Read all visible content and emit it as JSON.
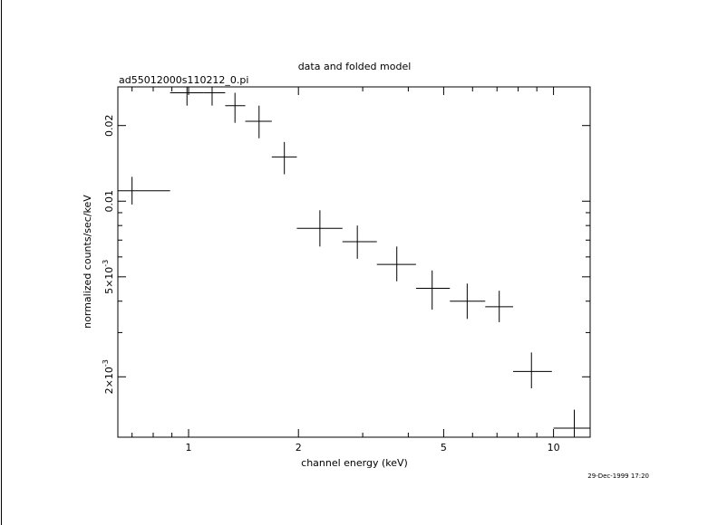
{
  "chart_data": {
    "type": "scatter",
    "title": "data and folded model",
    "subtitle": "ad55012000s110212_0.pi",
    "xlabel": "channel energy (keV)",
    "ylabel": "normalized counts/sec/keV",
    "timestamp": "29-Dec-1999 17:20",
    "x_scale": "log",
    "y_scale": "log",
    "xlim": [
      0.64,
      12.6
    ],
    "ylim": [
      0.00115,
      0.0285
    ],
    "grid": false,
    "x_ticks": [
      {
        "value": 1,
        "label": "1"
      },
      {
        "value": 2,
        "label": "2"
      },
      {
        "value": 5,
        "label": "5"
      },
      {
        "value": 10,
        "label": "10"
      }
    ],
    "y_ticks": [
      {
        "value": 0.002,
        "label": "2×10",
        "exp": "-3"
      },
      {
        "value": 0.005,
        "label": "5×10",
        "exp": "-3"
      },
      {
        "value": 0.01,
        "label": "0.01",
        "exp": ""
      },
      {
        "value": 0.02,
        "label": "0.02",
        "exp": ""
      }
    ],
    "points": [
      {
        "x": 0.7,
        "xlo": 0.64,
        "xhi": 0.89,
        "y": 0.011,
        "ylo": 0.0097,
        "yhi": 0.0125
      },
      {
        "x": 0.99,
        "xlo": 0.89,
        "xhi": 1.1,
        "y": 0.027,
        "ylo": 0.024,
        "yhi": 0.0285
      },
      {
        "x": 1.16,
        "xlo": 1.1,
        "xhi": 1.26,
        "y": 0.027,
        "ylo": 0.024,
        "yhi": 0.0285
      },
      {
        "x": 1.34,
        "xlo": 1.26,
        "xhi": 1.43,
        "y": 0.024,
        "ylo": 0.0205,
        "yhi": 0.027
      },
      {
        "x": 1.56,
        "xlo": 1.43,
        "xhi": 1.69,
        "y": 0.0208,
        "ylo": 0.0178,
        "yhi": 0.024
      },
      {
        "x": 1.83,
        "xlo": 1.69,
        "xhi": 1.98,
        "y": 0.015,
        "ylo": 0.0128,
        "yhi": 0.0172
      },
      {
        "x": 2.29,
        "xlo": 1.98,
        "xhi": 2.64,
        "y": 0.0078,
        "ylo": 0.0066,
        "yhi": 0.0092
      },
      {
        "x": 2.9,
        "xlo": 2.64,
        "xhi": 3.28,
        "y": 0.0069,
        "ylo": 0.0059,
        "yhi": 0.008
      },
      {
        "x": 3.72,
        "xlo": 3.28,
        "xhi": 4.2,
        "y": 0.0056,
        "ylo": 0.0048,
        "yhi": 0.0066
      },
      {
        "x": 4.65,
        "xlo": 4.2,
        "xhi": 5.2,
        "y": 0.0045,
        "ylo": 0.0037,
        "yhi": 0.0053
      },
      {
        "x": 5.8,
        "xlo": 5.2,
        "xhi": 6.5,
        "y": 0.004,
        "ylo": 0.0034,
        "yhi": 0.0047
      },
      {
        "x": 7.1,
        "xlo": 6.5,
        "xhi": 7.75,
        "y": 0.0038,
        "ylo": 0.0033,
        "yhi": 0.0044
      },
      {
        "x": 8.7,
        "xlo": 7.75,
        "xhi": 9.9,
        "y": 0.0021,
        "ylo": 0.0018,
        "yhi": 0.0025
      },
      {
        "x": 11.4,
        "xlo": 10.0,
        "xhi": 12.6,
        "y": 0.00125,
        "ylo": 0.00115,
        "yhi": 0.00148
      }
    ]
  }
}
